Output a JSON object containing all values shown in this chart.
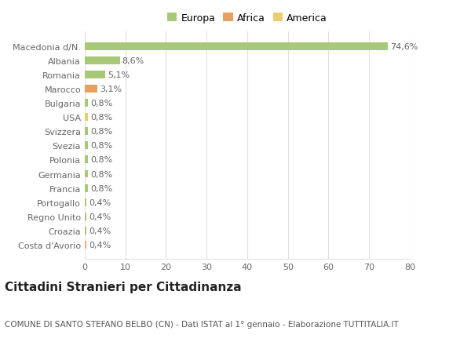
{
  "categories": [
    "Costa d'Avorio",
    "Croazia",
    "Regno Unito",
    "Portogallo",
    "Francia",
    "Germania",
    "Polonia",
    "Svezia",
    "Svizzera",
    "USA",
    "Bulgaria",
    "Marocco",
    "Romania",
    "Albania",
    "Macedonia d/N."
  ],
  "values": [
    0.4,
    0.4,
    0.4,
    0.4,
    0.8,
    0.8,
    0.8,
    0.8,
    0.8,
    0.8,
    0.8,
    3.1,
    5.1,
    8.6,
    74.6
  ],
  "labels": [
    "0,4%",
    "0,4%",
    "0,4%",
    "0,4%",
    "0,8%",
    "0,8%",
    "0,8%",
    "0,8%",
    "0,8%",
    "0,8%",
    "0,8%",
    "3,1%",
    "5,1%",
    "8,6%",
    "74,6%"
  ],
  "colors": [
    "#f0a878",
    "#a8c878",
    "#a8c878",
    "#a8c878",
    "#a8c878",
    "#a8c878",
    "#a8c878",
    "#a8c878",
    "#a8c878",
    "#e8d070",
    "#a8c878",
    "#e8a060",
    "#a8c878",
    "#a8c878",
    "#a8c878"
  ],
  "legend": [
    {
      "label": "Europa",
      "color": "#a8c878"
    },
    {
      "label": "Africa",
      "color": "#e8a060"
    },
    {
      "label": "America",
      "color": "#e8d070"
    }
  ],
  "title": "Cittadini Stranieri per Cittadinanza",
  "subtitle": "COMUNE DI SANTO STEFANO BELBO (CN) - Dati ISTAT al 1° gennaio - Elaborazione TUTTITALIA.IT",
  "xlim": [
    0,
    80
  ],
  "xticks": [
    0,
    10,
    20,
    30,
    40,
    50,
    60,
    70,
    80
  ],
  "background_color": "#ffffff",
  "grid_color": "#e0e0e0",
  "bar_height": 0.55,
  "label_fontsize": 8,
  "tick_fontsize": 8,
  "title_fontsize": 11,
  "subtitle_fontsize": 7.5
}
